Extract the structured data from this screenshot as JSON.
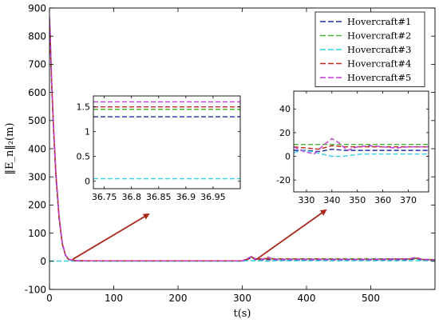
{
  "chart_data": [
    {
      "type": "line",
      "xlabel": "t(s)",
      "ylabel": "‖E_n‖₂(m)",
      "xlim": [
        0,
        600
      ],
      "ylim": [
        -100,
        900
      ],
      "xticks": [
        "0",
        "100",
        "200",
        "300",
        "400",
        "500"
      ],
      "yticks": [
        "-100",
        "0",
        "100",
        "200",
        "300",
        "400",
        "500",
        "600",
        "700",
        "800",
        "900"
      ],
      "legend_position": "top-right",
      "grid": false,
      "series": [
        {
          "name": "Hovercraft#1",
          "color": "#1f2fa0",
          "x": [
            0,
            1,
            3,
            6,
            10,
            15,
            20,
            25,
            30,
            40,
            60,
            100,
            200,
            300,
            310,
            315,
            320,
            330,
            340,
            350,
            400,
            500,
            560,
            570,
            580,
            600
          ],
          "y": [
            850,
            800,
            650,
            480,
            300,
            150,
            60,
            20,
            6,
            2,
            1.5,
            1.3,
            1.3,
            1.3,
            8,
            14,
            6,
            5,
            6,
            5,
            5,
            5,
            6,
            9,
            5,
            4
          ]
        },
        {
          "name": "Hovercraft#2",
          "color": "#4ab336",
          "x": [
            0,
            1,
            3,
            6,
            10,
            15,
            20,
            25,
            30,
            40,
            60,
            100,
            200,
            300,
            310,
            315,
            320,
            330,
            340,
            350,
            400,
            500,
            560,
            570,
            580,
            600
          ],
          "y": [
            860,
            810,
            660,
            490,
            310,
            155,
            62,
            21,
            7,
            2.2,
            1.6,
            1.45,
            1.45,
            1.45,
            10,
            16,
            8,
            9,
            10,
            9,
            9,
            9,
            8,
            10,
            7,
            6
          ]
        },
        {
          "name": "Hovercraft#3",
          "color": "#35d0e6",
          "x": [
            0,
            40,
            100,
            200,
            300,
            310,
            320,
            330,
            340,
            350,
            400,
            500,
            600
          ],
          "y": [
            1,
            0.5,
            0.05,
            0.05,
            0.05,
            3,
            2,
            2,
            0,
            2,
            2,
            2,
            2
          ]
        },
        {
          "name": "Hovercraft#4",
          "color": "#c02a1c",
          "x": [
            0,
            1,
            3,
            6,
            10,
            15,
            20,
            25,
            30,
            40,
            60,
            100,
            200,
            300,
            310,
            315,
            320,
            330,
            340,
            350,
            400,
            500,
            560,
            570,
            580,
            600
          ],
          "y": [
            855,
            805,
            655,
            485,
            305,
            152,
            61,
            20,
            6.5,
            2.1,
            1.55,
            1.5,
            1.5,
            1.5,
            9,
            15,
            7,
            8,
            9,
            8,
            8,
            7,
            8,
            12,
            6,
            5
          ]
        },
        {
          "name": "Hovercraft#5",
          "color": "#c23ad6",
          "x": [
            0,
            1,
            3,
            6,
            10,
            15,
            20,
            25,
            30,
            40,
            60,
            100,
            200,
            300,
            310,
            315,
            320,
            330,
            340,
            350,
            400,
            500,
            560,
            570,
            580,
            600
          ],
          "y": [
            870,
            820,
            670,
            500,
            320,
            160,
            65,
            22,
            7,
            2.3,
            1.7,
            1.6,
            1.6,
            1.6,
            12,
            18,
            9,
            6,
            15,
            7,
            7,
            7,
            9,
            14,
            7,
            6
          ]
        }
      ]
    },
    {
      "type": "line",
      "xlim": [
        36.73,
        37.0
      ],
      "ylim": [
        -0.15,
        1.72
      ],
      "xticks": [
        "36.75",
        "36.8",
        "36.85",
        "36.9",
        "36.95"
      ],
      "yticks": [
        "0",
        "0.5",
        "1",
        "1.5"
      ],
      "series": [
        {
          "color": "#1f2fa0",
          "x": [
            36.73,
            37.0
          ],
          "y": [
            1.3,
            1.3
          ]
        },
        {
          "color": "#4ab336",
          "x": [
            36.73,
            37.0
          ],
          "y": [
            1.45,
            1.45
          ]
        },
        {
          "color": "#35d0e6",
          "x": [
            36.73,
            37.0
          ],
          "y": [
            0.05,
            0.05
          ]
        },
        {
          "color": "#c02a1c",
          "x": [
            36.73,
            37.0
          ],
          "y": [
            1.5,
            1.5
          ]
        },
        {
          "color": "#c23ad6",
          "x": [
            36.73,
            37.0
          ],
          "y": [
            1.6,
            1.6
          ]
        }
      ]
    },
    {
      "type": "line",
      "xlim": [
        325,
        378
      ],
      "ylim": [
        -30,
        55
      ],
      "xticks": [
        "330",
        "340",
        "350",
        "360",
        "370"
      ],
      "yticks": [
        "-20",
        "0",
        "20",
        "40"
      ],
      "series": [
        {
          "color": "#1f2fa0",
          "x": [
            325,
            330,
            335,
            340,
            345,
            350,
            360,
            370,
            378
          ],
          "y": [
            5,
            5,
            4,
            6,
            5,
            5,
            5,
            5,
            5
          ]
        },
        {
          "color": "#4ab336",
          "x": [
            325,
            330,
            340,
            350,
            360,
            370,
            378
          ],
          "y": [
            10,
            10,
            10,
            10,
            10,
            10,
            10
          ]
        },
        {
          "color": "#35d0e6",
          "x": [
            325,
            328,
            332,
            336,
            340,
            344,
            348,
            352,
            360,
            370,
            378
          ],
          "y": [
            3,
            5,
            4,
            2,
            0,
            0,
            1,
            2,
            2,
            2,
            2
          ]
        },
        {
          "color": "#c02a1c",
          "x": [
            325,
            330,
            335,
            340,
            345,
            350,
            360,
            370,
            378
          ],
          "y": [
            8,
            7,
            6,
            9,
            8,
            8,
            8,
            8,
            8
          ]
        },
        {
          "color": "#c23ad6",
          "x": [
            325,
            329,
            333,
            337,
            340,
            343,
            346,
            350,
            355,
            360,
            365,
            370,
            378
          ],
          "y": [
            8,
            4,
            2,
            10,
            15,
            11,
            5,
            8,
            9,
            8,
            7,
            8,
            8
          ]
        }
      ]
    }
  ]
}
